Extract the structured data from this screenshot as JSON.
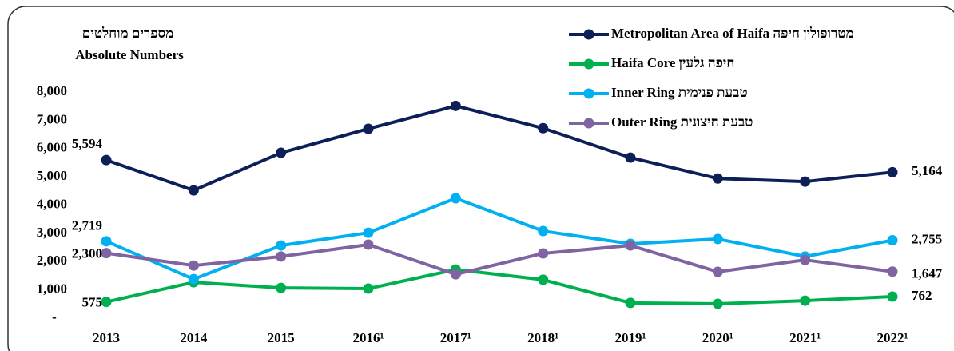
{
  "chart_data": {
    "type": "line",
    "y_label": [
      "מספרים מוחלטים",
      "Absolute Numbers"
    ],
    "categories": [
      "2013",
      "2014",
      "2015",
      "2016¹",
      "2017¹",
      "2018¹",
      "2019¹",
      "2020¹",
      "2021¹",
      "2022¹"
    ],
    "ylim": [
      0,
      8000
    ],
    "yticks": [
      {
        "value": 0,
        "label": "-"
      },
      {
        "value": 1000,
        "label": "1,000"
      },
      {
        "value": 2000,
        "label": "2,000"
      },
      {
        "value": 3000,
        "label": "3,000"
      },
      {
        "value": 4000,
        "label": "4,000"
      },
      {
        "value": 5000,
        "label": "5,000"
      },
      {
        "value": 6000,
        "label": "6,000"
      },
      {
        "value": 7000,
        "label": "7,000"
      },
      {
        "value": 8000,
        "label": "8,000"
      }
    ],
    "grid": false,
    "legend": "top-right",
    "series": [
      {
        "name": "Metropolitan Area of Haifa מטרופולין חיפה",
        "color": "#0c1f57",
        "values": [
          5594,
          4520,
          5850,
          6700,
          7510,
          6720,
          5680,
          4940,
          4830,
          5164
        ],
        "value_labels": [
          "5,594",
          null,
          null,
          null,
          null,
          null,
          null,
          null,
          null,
          "5,164"
        ]
      },
      {
        "name": "Haifa Core חיפה גלעין",
        "color": "#00b050",
        "values": [
          575,
          1270,
          1070,
          1045,
          1720,
          1360,
          540,
          510,
          620,
          762
        ],
        "value_labels": [
          "575",
          null,
          null,
          null,
          null,
          null,
          null,
          null,
          null,
          "762"
        ]
      },
      {
        "name": "Inner Ring טבעת פנימית",
        "color": "#00b0f0",
        "values": [
          2719,
          1380,
          2570,
          3020,
          4240,
          3080,
          2630,
          2800,
          2180,
          2755
        ],
        "value_labels": [
          "2,719",
          null,
          null,
          null,
          null,
          null,
          null,
          null,
          null,
          "2,755"
        ]
      },
      {
        "name": "Outer Ring טבעת חיצונית",
        "color": "#8064a2",
        "values": [
          2300,
          1860,
          2180,
          2600,
          1550,
          2290,
          2570,
          1640,
          2060,
          1647
        ],
        "value_labels": [
          "2,300",
          null,
          null,
          null,
          null,
          null,
          null,
          null,
          null,
          "1,647"
        ]
      }
    ]
  }
}
